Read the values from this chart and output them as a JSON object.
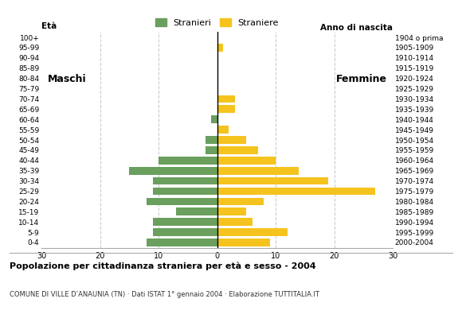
{
  "age_groups": [
    "0-4",
    "5-9",
    "10-14",
    "15-19",
    "20-24",
    "25-29",
    "30-34",
    "35-39",
    "40-44",
    "45-49",
    "50-54",
    "55-59",
    "60-64",
    "65-69",
    "70-74",
    "75-79",
    "80-84",
    "85-89",
    "90-94",
    "95-99",
    "100+"
  ],
  "birth_years": [
    "2000-2004",
    "1995-1999",
    "1990-1994",
    "1985-1989",
    "1980-1984",
    "1975-1979",
    "1970-1974",
    "1965-1969",
    "1960-1964",
    "1955-1959",
    "1950-1954",
    "1945-1949",
    "1940-1944",
    "1935-1939",
    "1930-1934",
    "1925-1929",
    "1920-1924",
    "1915-1919",
    "1910-1914",
    "1905-1909",
    "1904 o prima"
  ],
  "males": [
    12,
    11,
    11,
    7,
    12,
    11,
    11,
    15,
    10,
    2,
    2,
    0,
    1,
    0,
    0,
    0,
    0,
    0,
    0,
    0,
    0
  ],
  "females": [
    9,
    12,
    6,
    5,
    8,
    27,
    19,
    14,
    10,
    7,
    5,
    2,
    0,
    3,
    3,
    0,
    0,
    0,
    0,
    1,
    0
  ],
  "male_color": "#6a9f5e",
  "female_color": "#f5c31e",
  "xlim": 30,
  "title": "Popolazione per cittadinanza straniera per età e sesso - 2004",
  "subtitle": "COMUNE DI VILLE D’ANAUNIA (TN) · Dati ISTAT 1° gennaio 2004 · Elaborazione TUTTITALIA.IT",
  "legend_males": "Stranieri",
  "legend_females": "Straniere",
  "ylabel_left": "Età",
  "anno_nascita": "Anno di nascita",
  "label_maschi": "Maschi",
  "label_femmine": "Femmine",
  "background_color": "#ffffff",
  "grid_color": "#cccccc"
}
